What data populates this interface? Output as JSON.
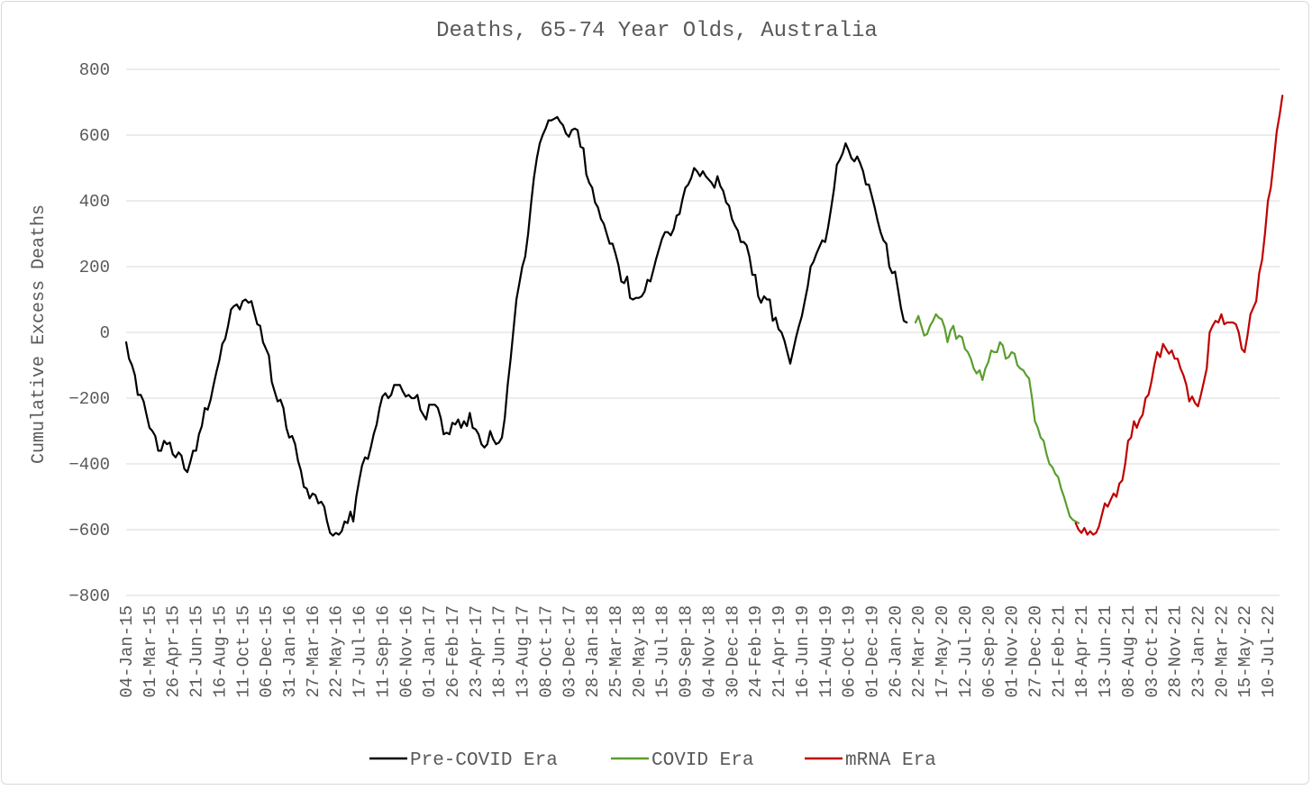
{
  "chart_data": {
    "type": "line",
    "title": "Deaths, 65-74 Year Olds, Australia",
    "ylabel": "Cumulative Excess Deaths",
    "xlabel": "",
    "ylim": [
      -800,
      800
    ],
    "yticks": [
      -800,
      -600,
      -400,
      -200,
      0,
      200,
      400,
      600,
      800
    ],
    "ytick_labels": [
      "−800",
      "−600",
      "−400",
      "−200",
      "0",
      "200",
      "400",
      "600",
      "800"
    ],
    "xtick_labels": [
      "04-Jan-15",
      "01-Mar-15",
      "26-Apr-15",
      "21-Jun-15",
      "16-Aug-15",
      "11-Oct-15",
      "06-Dec-15",
      "31-Jan-16",
      "27-Mar-16",
      "22-May-16",
      "17-Jul-16",
      "11-Sep-16",
      "06-Nov-16",
      "01-Jan-17",
      "26-Feb-17",
      "23-Apr-17",
      "18-Jun-17",
      "13-Aug-17",
      "08-Oct-17",
      "03-Dec-17",
      "28-Jan-18",
      "25-Mar-18",
      "20-May-18",
      "15-Jul-18",
      "09-Sep-18",
      "04-Nov-18",
      "30-Dec-18",
      "24-Feb-19",
      "21-Apr-19",
      "16-Jun-19",
      "11-Aug-19",
      "06-Oct-19",
      "01-Dec-19",
      "26-Jan-20",
      "22-Mar-20",
      "17-May-20",
      "12-Jul-20",
      "06-Sep-20",
      "01-Nov-20",
      "27-Dec-20",
      "21-Feb-21",
      "18-Apr-21",
      "13-Jun-21",
      "08-Aug-21",
      "03-Oct-21",
      "28-Nov-21",
      "23-Jan-22",
      "20-Mar-22",
      "15-May-22",
      "10-Jul-22"
    ],
    "grid": true,
    "legend_position": "bottom",
    "series": [
      {
        "name": "Pre-COVID Era",
        "color": "#000000",
        "x_start": "2015-01-04",
        "values": [
          -30,
          -80,
          -100,
          -130,
          -190,
          -190,
          -210,
          -250,
          -290,
          -300,
          -315,
          -360,
          -360,
          -330,
          -340,
          -335,
          -370,
          -380,
          -365,
          -375,
          -415,
          -425,
          -395,
          -360,
          -360,
          -310,
          -285,
          -230,
          -235,
          -205,
          -160,
          -120,
          -85,
          -35,
          -20,
          20,
          70,
          80,
          85,
          70,
          95,
          100,
          90,
          95,
          60,
          25,
          20,
          -30,
          -50,
          -70,
          -150,
          -180,
          -210,
          -205,
          -230,
          -290,
          -320,
          -315,
          -340,
          -390,
          -420,
          -470,
          -475,
          -505,
          -490,
          -495,
          -520,
          -515,
          -530,
          -575,
          -610,
          -618,
          -610,
          -615,
          -605,
          -575,
          -580,
          -545,
          -575,
          -500,
          -450,
          -405,
          -380,
          -385,
          -350,
          -310,
          -280,
          -230,
          -195,
          -185,
          -200,
          -190,
          -160,
          -160,
          -160,
          -180,
          -195,
          -190,
          -200,
          -200,
          -190,
          -235,
          -250,
          -265,
          -220,
          -220,
          -220,
          -230,
          -260,
          -310,
          -305,
          -310,
          -275,
          -280,
          -265,
          -290,
          -270,
          -285,
          -245,
          -290,
          -295,
          -310,
          -340,
          -350,
          -340,
          -300,
          -325,
          -340,
          -335,
          -320,
          -260,
          -160,
          -80,
          10,
          100,
          150,
          200,
          230,
          300,
          390,
          470,
          530,
          575,
          600,
          620,
          645,
          645,
          650,
          655,
          640,
          630,
          605,
          595,
          615,
          620,
          615,
          565,
          560,
          480,
          455,
          440,
          395,
          380,
          345,
          330,
          300,
          270,
          270,
          240,
          205,
          155,
          150,
          170,
          105,
          100,
          105,
          105,
          110,
          125,
          160,
          155,
          190,
          225,
          255,
          285,
          305,
          305,
          295,
          315,
          355,
          360,
          405,
          440,
          450,
          470,
          500,
          490,
          475,
          490,
          475,
          465,
          455,
          440,
          475,
          445,
          430,
          395,
          385,
          345,
          325,
          310,
          275,
          275,
          265,
          230,
          175,
          175,
          110,
          90,
          110,
          100,
          100,
          35,
          45,
          10,
          0,
          -25,
          -60,
          -95,
          -55,
          -15,
          20,
          50,
          95,
          140,
          200,
          215,
          240,
          260,
          280,
          275,
          320,
          375,
          435,
          510,
          525,
          545,
          575,
          555,
          530,
          520,
          535,
          515,
          490,
          450,
          450,
          415,
          380,
          340,
          305,
          280,
          270,
          200,
          180,
          185,
          130,
          75,
          35,
          30
        ]
      },
      {
        "name": "COVID Era",
        "color": "#5a9e2f",
        "x_start": "2020-03-15",
        "values": [
          30,
          50,
          20,
          -10,
          -5,
          20,
          35,
          55,
          45,
          40,
          15,
          -30,
          5,
          20,
          -20,
          -10,
          -15,
          -50,
          -60,
          -80,
          -110,
          -125,
          -115,
          -145,
          -110,
          -90,
          -55,
          -60,
          -60,
          -30,
          -40,
          -80,
          -75,
          -60,
          -65,
          -100,
          -110,
          -115,
          -130,
          -140,
          -200,
          -270,
          -290,
          -320,
          -330,
          -370,
          -400,
          -410,
          -430,
          -440,
          -475,
          -500,
          -530,
          -560,
          -570,
          -575,
          -580
        ]
      },
      {
        "name": "mRNA Era",
        "color": "#c00000",
        "x_start": "2021-04-04",
        "values": [
          -580,
          -600,
          -610,
          -595,
          -615,
          -605,
          -615,
          -610,
          -590,
          -555,
          -520,
          -530,
          -510,
          -490,
          -500,
          -460,
          -450,
          -400,
          -330,
          -320,
          -270,
          -290,
          -265,
          -250,
          -200,
          -190,
          -150,
          -100,
          -60,
          -75,
          -35,
          -50,
          -65,
          -55,
          -80,
          -80,
          -110,
          -130,
          -160,
          -210,
          -195,
          -215,
          -225,
          -190,
          -150,
          -110,
          0,
          20,
          35,
          30,
          55,
          25,
          30,
          30,
          30,
          25,
          0,
          -50,
          -60,
          -10,
          55,
          75,
          95,
          180,
          220,
          300,
          400,
          440,
          520,
          610,
          660,
          720
        ]
      }
    ]
  }
}
